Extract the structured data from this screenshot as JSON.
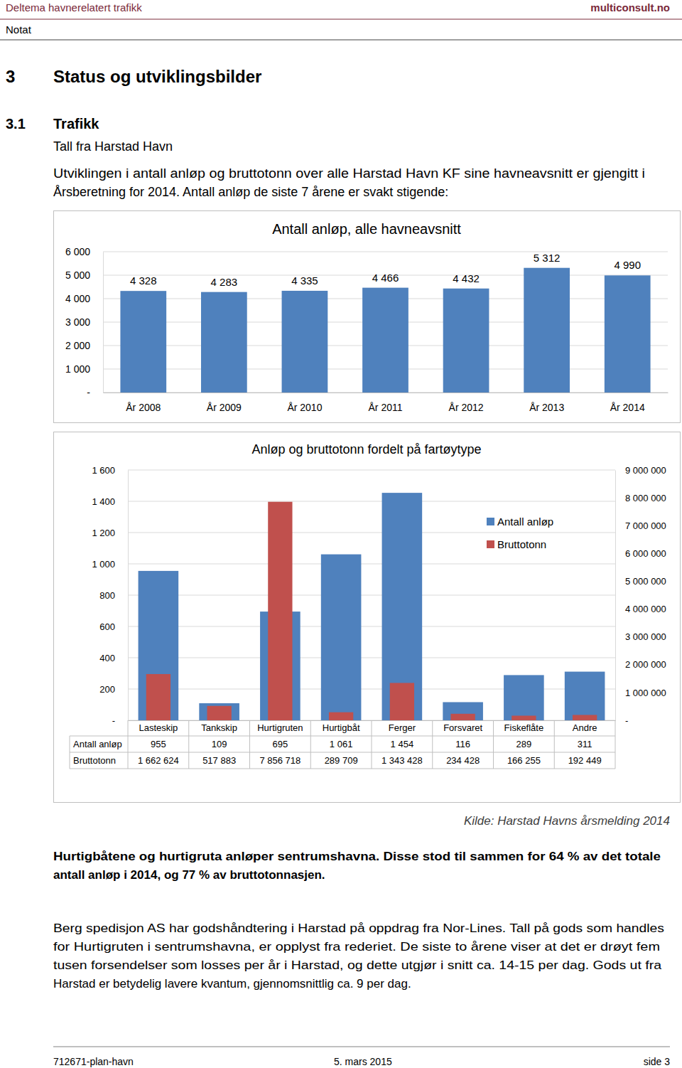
{
  "header": {
    "left": "Deltema havnerelatert trafikk",
    "right": "multiconsult.no",
    "doc_type": "Notat"
  },
  "headings": [
    {
      "number": "3",
      "title": "Status og utviklingsbilder"
    },
    {
      "number": "3.1",
      "title": "Trafikk"
    }
  ],
  "subheading": "Tall fra Harstad Havn",
  "intro": [
    "Utviklingen i antall anløp og bruttotonn over alle Harstad Havn KF sine havneavsnitt er gjengitt i",
    "Årsberetning for 2014. Antall anløp de siste 7 årene er svakt stigende:"
  ],
  "chart_data": [
    {
      "type": "bar",
      "title": "Antall anløp, alle havneavsnitt",
      "categories": [
        "År 2008",
        "År 2009",
        "År 2010",
        "År 2011",
        "År 2012",
        "År 2013",
        "År 2014"
      ],
      "values": [
        4328,
        4283,
        4335,
        4466,
        4432,
        5312,
        4990
      ],
      "value_labels": [
        "4 328",
        "4 283",
        "4 335",
        "4 466",
        "4 432",
        "5 312",
        "4 990"
      ],
      "data_labels": true,
      "color": "#4f81bd",
      "ylim": [
        0,
        6000
      ],
      "yticks": [
        {
          "value": 0,
          "label": "-"
        },
        {
          "value": 1000,
          "label": "1 000"
        },
        {
          "value": 2000,
          "label": "2 000"
        },
        {
          "value": 3000,
          "label": "3 000"
        },
        {
          "value": 4000,
          "label": "4 000"
        },
        {
          "value": 5000,
          "label": "5 000"
        },
        {
          "value": 6000,
          "label": "6 000"
        }
      ],
      "grid": true
    },
    {
      "type": "bar",
      "title": "Anløp og bruttotonn fordelt på fartøytype",
      "categories": [
        "Lasteskip",
        "Tankskip",
        "Hurtigruten",
        "Hurtigbåt",
        "Ferger",
        "Forsvaret",
        "Fiskeflåte",
        "Andre"
      ],
      "series": [
        {
          "name": "Antall anløp",
          "color": "#4f81bd",
          "values": [
            955,
            109,
            695,
            1061,
            1454,
            116,
            289,
            311
          ],
          "value_labels": [
            "955",
            "109",
            "695",
            "1 061",
            "1 454",
            "116",
            "289",
            "311"
          ]
        },
        {
          "name": "Bruttotonn",
          "color": "#c0504d",
          "axis": "y2",
          "values": [
            1662624,
            517883,
            7856718,
            289709,
            1343428,
            234428,
            166255,
            192449
          ],
          "value_labels": [
            "1 662 624",
            "517 883",
            "7 856 718",
            "289 709",
            "1 343 428",
            "234 428",
            "166 255",
            "192 449"
          ]
        }
      ],
      "ylim": [
        0,
        1600
      ],
      "yticks": [
        {
          "value": 0,
          "label": "-"
        },
        200,
        400,
        600,
        800,
        {
          "value": 1000,
          "label": "1 000"
        },
        {
          "value": 1200,
          "label": "1 200"
        },
        {
          "value": 1400,
          "label": "1 400"
        },
        {
          "value": 1600,
          "label": "1 600"
        }
      ],
      "y2lim": [
        0,
        9000000
      ],
      "y2ticks": [
        {
          "value": 0,
          "label": "-"
        },
        {
          "value": 1000000,
          "label": "1 000 000"
        },
        {
          "value": 2000000,
          "label": "2 000 000"
        },
        {
          "value": 3000000,
          "label": "3 000 000"
        },
        {
          "value": 4000000,
          "label": "4 000 000"
        },
        {
          "value": 5000000,
          "label": "5 000 000"
        },
        {
          "value": 6000000,
          "label": "6 000 000"
        },
        {
          "value": 7000000,
          "label": "7 000 000"
        },
        {
          "value": 8000000,
          "label": "8 000 000"
        },
        {
          "value": 9000000,
          "label": "9 000 000"
        }
      ],
      "grid": true,
      "legend": "upper right"
    }
  ],
  "source": "Kilde: Harstad Havns årsmelding 2014",
  "highlight": [
    "Hurtigbåtene og hurtigruta anløper sentrumshavna. Disse stod til sammen for 64 % av det totale",
    "antall anløp i 2014, og 77 % av bruttotonnasjen."
  ],
  "paragraph": [
    "Berg spedisjon AS har godshåndtering i Harstad på oppdrag fra Nor-Lines. Tall på gods som handles",
    "for Hurtigruten i sentrumshavna, er opplyst fra rederiet. De siste to årene viser at det er drøyt fem",
    "tusen forsendelser som losses per år i Harstad, og dette utgjør i snitt ca. 14-15 per dag. Gods ut fra",
    "Harstad er betydelig lavere kvantum, gjennomsnittlig ca. 9 per dag."
  ],
  "footer": {
    "doc_id": "712671-plan-havn",
    "date": "5. mars 2015",
    "page": "side 3"
  }
}
